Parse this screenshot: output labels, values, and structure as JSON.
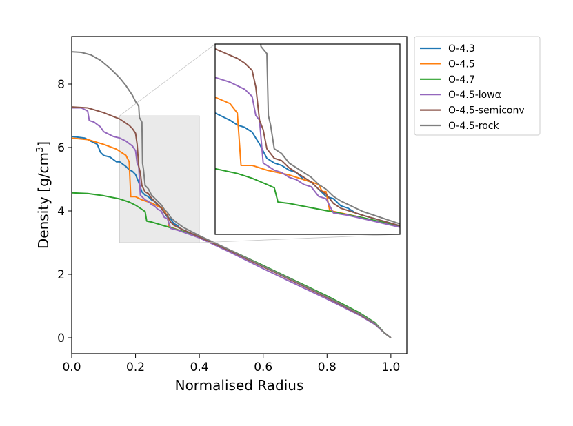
{
  "chart_data": {
    "type": "line",
    "title": "",
    "xlabel": "Normalised Radius",
    "ylabel": "Density [g/cm3]",
    "ylabel_base": "Density [g/cm",
    "ylabel_sup": "3",
    "ylabel_end": "]",
    "xlim": [
      0.0,
      1.05
    ],
    "ylim": [
      -0.5,
      9.5
    ],
    "xticks": [
      0.0,
      0.2,
      0.4,
      0.6,
      0.8,
      1.0
    ],
    "xtick_labels": [
      "0.0",
      "0.2",
      "0.4",
      "0.6",
      "0.8",
      "1.0"
    ],
    "yticks": [
      0,
      2,
      4,
      6,
      8
    ],
    "ytick_labels": [
      "0",
      "2",
      "4",
      "6",
      "8"
    ],
    "grid": false,
    "legend_position": "outside-top-right",
    "highlight_region": {
      "x": [
        0.15,
        0.4
      ],
      "y": [
        3.0,
        7.0
      ]
    },
    "inset": {
      "xlim": [
        0.15,
        0.4
      ],
      "ylim": [
        3.0,
        7.0
      ],
      "location": "upper-right"
    },
    "series": [
      {
        "name": "O-4.3",
        "color": "#1f77b4",
        "points": [
          [
            0.0,
            6.35
          ],
          [
            0.04,
            6.3
          ],
          [
            0.06,
            6.2
          ],
          [
            0.08,
            6.1
          ],
          [
            0.09,
            5.85
          ],
          [
            0.1,
            5.75
          ],
          [
            0.12,
            5.7
          ],
          [
            0.14,
            5.55
          ],
          [
            0.15,
            5.55
          ],
          [
            0.17,
            5.4
          ],
          [
            0.18,
            5.3
          ],
          [
            0.19,
            5.25
          ],
          [
            0.2,
            5.15
          ],
          [
            0.21,
            4.9
          ],
          [
            0.22,
            4.6
          ],
          [
            0.23,
            4.5
          ],
          [
            0.24,
            4.45
          ],
          [
            0.25,
            4.35
          ],
          [
            0.26,
            4.3
          ],
          [
            0.27,
            4.15
          ],
          [
            0.28,
            4.1
          ],
          [
            0.29,
            3.95
          ],
          [
            0.3,
            3.8
          ],
          [
            0.31,
            3.75
          ],
          [
            0.32,
            3.6
          ],
          [
            0.33,
            3.55
          ],
          [
            0.34,
            3.45
          ],
          [
            0.35,
            3.4
          ],
          [
            0.4,
            3.18
          ],
          [
            0.5,
            2.73
          ],
          [
            0.6,
            2.25
          ],
          [
            0.7,
            1.77
          ],
          [
            0.8,
            1.28
          ],
          [
            0.9,
            0.76
          ],
          [
            0.95,
            0.45
          ],
          [
            0.98,
            0.15
          ],
          [
            1.0,
            0.0
          ]
        ]
      },
      {
        "name": "O-4.5",
        "color": "#ff7f0e",
        "points": [
          [
            0.0,
            6.3
          ],
          [
            0.05,
            6.25
          ],
          [
            0.1,
            6.1
          ],
          [
            0.14,
            5.95
          ],
          [
            0.17,
            5.75
          ],
          [
            0.18,
            5.55
          ],
          [
            0.185,
            4.45
          ],
          [
            0.2,
            4.45
          ],
          [
            0.22,
            4.35
          ],
          [
            0.25,
            4.25
          ],
          [
            0.27,
            4.15
          ],
          [
            0.28,
            4.1
          ],
          [
            0.29,
            4.05
          ],
          [
            0.295,
            3.9
          ],
          [
            0.3,
            3.9
          ],
          [
            0.305,
            3.5
          ],
          [
            0.32,
            3.45
          ],
          [
            0.35,
            3.35
          ],
          [
            0.4,
            3.15
          ],
          [
            0.5,
            2.72
          ],
          [
            0.6,
            2.24
          ],
          [
            0.7,
            1.76
          ],
          [
            0.8,
            1.27
          ],
          [
            0.9,
            0.75
          ],
          [
            0.95,
            0.45
          ],
          [
            0.98,
            0.15
          ],
          [
            1.0,
            0.0
          ]
        ]
      },
      {
        "name": "O-4.7",
        "color": "#2ca02c",
        "points": [
          [
            0.0,
            4.57
          ],
          [
            0.05,
            4.55
          ],
          [
            0.1,
            4.48
          ],
          [
            0.15,
            4.38
          ],
          [
            0.18,
            4.28
          ],
          [
            0.2,
            4.18
          ],
          [
            0.22,
            4.05
          ],
          [
            0.23,
            3.98
          ],
          [
            0.235,
            3.68
          ],
          [
            0.25,
            3.65
          ],
          [
            0.3,
            3.5
          ],
          [
            0.35,
            3.35
          ],
          [
            0.4,
            3.17
          ],
          [
            0.5,
            2.75
          ],
          [
            0.6,
            2.28
          ],
          [
            0.7,
            1.8
          ],
          [
            0.8,
            1.32
          ],
          [
            0.9,
            0.8
          ],
          [
            0.95,
            0.48
          ],
          [
            0.98,
            0.15
          ],
          [
            1.0,
            0.0
          ]
        ]
      },
      {
        "name": "O-4.5-lowα",
        "color": "#9467bd",
        "points": [
          [
            0.0,
            7.25
          ],
          [
            0.03,
            7.25
          ],
          [
            0.05,
            7.15
          ],
          [
            0.055,
            6.85
          ],
          [
            0.07,
            6.8
          ],
          [
            0.09,
            6.65
          ],
          [
            0.1,
            6.5
          ],
          [
            0.11,
            6.45
          ],
          [
            0.13,
            6.35
          ],
          [
            0.15,
            6.3
          ],
          [
            0.17,
            6.2
          ],
          [
            0.19,
            6.05
          ],
          [
            0.2,
            5.9
          ],
          [
            0.205,
            5.5
          ],
          [
            0.21,
            5.4
          ],
          [
            0.215,
            4.5
          ],
          [
            0.225,
            4.4
          ],
          [
            0.23,
            4.35
          ],
          [
            0.24,
            4.3
          ],
          [
            0.25,
            4.2
          ],
          [
            0.26,
            4.15
          ],
          [
            0.27,
            4.05
          ],
          [
            0.28,
            4.0
          ],
          [
            0.29,
            3.8
          ],
          [
            0.3,
            3.75
          ],
          [
            0.31,
            3.45
          ],
          [
            0.33,
            3.4
          ],
          [
            0.35,
            3.33
          ],
          [
            0.4,
            3.15
          ],
          [
            0.5,
            2.68
          ],
          [
            0.6,
            2.18
          ],
          [
            0.7,
            1.7
          ],
          [
            0.8,
            1.22
          ],
          [
            0.9,
            0.72
          ],
          [
            0.95,
            0.42
          ],
          [
            0.98,
            0.15
          ],
          [
            1.0,
            0.0
          ]
        ]
      },
      {
        "name": "O-4.5-semiconv",
        "color": "#8c564b",
        "points": [
          [
            0.0,
            7.28
          ],
          [
            0.05,
            7.25
          ],
          [
            0.1,
            7.1
          ],
          [
            0.15,
            6.9
          ],
          [
            0.18,
            6.7
          ],
          [
            0.19,
            6.6
          ],
          [
            0.2,
            6.45
          ],
          [
            0.205,
            6.1
          ],
          [
            0.21,
            5.4
          ],
          [
            0.215,
            5.2
          ],
          [
            0.22,
            4.8
          ],
          [
            0.225,
            4.7
          ],
          [
            0.23,
            4.6
          ],
          [
            0.24,
            4.55
          ],
          [
            0.25,
            4.4
          ],
          [
            0.26,
            4.3
          ],
          [
            0.27,
            4.2
          ],
          [
            0.28,
            4.1
          ],
          [
            0.29,
            3.95
          ],
          [
            0.3,
            3.85
          ],
          [
            0.31,
            3.65
          ],
          [
            0.32,
            3.55
          ],
          [
            0.35,
            3.4
          ],
          [
            0.4,
            3.18
          ],
          [
            0.5,
            2.72
          ],
          [
            0.6,
            2.24
          ],
          [
            0.7,
            1.76
          ],
          [
            0.8,
            1.27
          ],
          [
            0.9,
            0.75
          ],
          [
            0.95,
            0.45
          ],
          [
            0.98,
            0.15
          ],
          [
            1.0,
            0.0
          ]
        ]
      },
      {
        "name": "O-4.5-rock",
        "color": "#7f7f7f",
        "points": [
          [
            0.0,
            9.02
          ],
          [
            0.03,
            9.0
          ],
          [
            0.06,
            8.92
          ],
          [
            0.09,
            8.75
          ],
          [
            0.12,
            8.5
          ],
          [
            0.15,
            8.2
          ],
          [
            0.17,
            7.95
          ],
          [
            0.19,
            7.65
          ],
          [
            0.2,
            7.45
          ],
          [
            0.21,
            7.3
          ],
          [
            0.212,
            6.95
          ],
          [
            0.22,
            6.8
          ],
          [
            0.222,
            5.5
          ],
          [
            0.225,
            5.3
          ],
          [
            0.23,
            4.8
          ],
          [
            0.24,
            4.7
          ],
          [
            0.25,
            4.5
          ],
          [
            0.26,
            4.4
          ],
          [
            0.27,
            4.3
          ],
          [
            0.28,
            4.2
          ],
          [
            0.29,
            4.05
          ],
          [
            0.3,
            3.95
          ],
          [
            0.31,
            3.8
          ],
          [
            0.32,
            3.7
          ],
          [
            0.35,
            3.48
          ],
          [
            0.4,
            3.22
          ],
          [
            0.5,
            2.75
          ],
          [
            0.6,
            2.26
          ],
          [
            0.7,
            1.78
          ],
          [
            0.8,
            1.29
          ],
          [
            0.9,
            0.77
          ],
          [
            0.95,
            0.46
          ],
          [
            0.98,
            0.15
          ],
          [
            1.0,
            0.0
          ]
        ]
      }
    ]
  }
}
